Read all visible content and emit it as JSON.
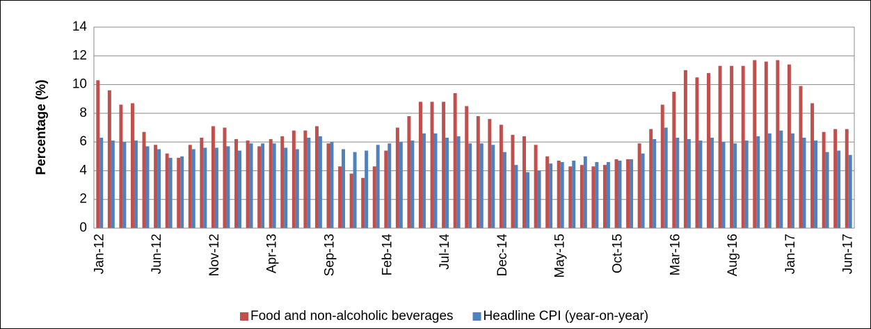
{
  "chart_data": {
    "type": "bar",
    "y_label": "Percentage (%)",
    "categories": [
      "Jan-12",
      null,
      null,
      null,
      null,
      "Jun-12",
      null,
      null,
      null,
      null,
      "Nov-12",
      null,
      null,
      null,
      null,
      "Apr-13",
      null,
      null,
      null,
      null,
      "Sep-13",
      null,
      null,
      null,
      null,
      "Feb-14",
      null,
      null,
      null,
      null,
      "Jul-14",
      null,
      null,
      null,
      null,
      "Dec-14",
      null,
      null,
      null,
      null,
      "May-15",
      null,
      null,
      null,
      null,
      "Oct-15",
      null,
      null,
      null,
      null,
      "Mar-16",
      null,
      null,
      null,
      null,
      "Aug-16",
      null,
      null,
      null,
      null,
      "Jan-17",
      null,
      null,
      null,
      null,
      "Jun-17"
    ],
    "series": [
      {
        "name": "Food and non-alcoholic beverages",
        "color": "#c0504d",
        "values": [
          10.3,
          9.6,
          8.6,
          8.7,
          6.7,
          5.8,
          5.2,
          4.9,
          5.8,
          6.3,
          7.1,
          7.0,
          6.2,
          6.1,
          5.7,
          6.2,
          6.4,
          6.8,
          6.8,
          7.1,
          5.9,
          4.3,
          3.8,
          3.5,
          4.3,
          5.4,
          7.0,
          7.8,
          8.8,
          8.8,
          8.8,
          9.4,
          8.5,
          7.8,
          7.6,
          7.2,
          6.5,
          6.4,
          5.8,
          5.0,
          4.7,
          4.3,
          4.4,
          4.3,
          4.4,
          4.8,
          4.8,
          5.9,
          6.9,
          8.6,
          9.5,
          11.0,
          10.5,
          10.8,
          11.3,
          11.3,
          11.3,
          11.7,
          11.6,
          11.7,
          11.4,
          9.9,
          8.7,
          6.7,
          6.9,
          6.9
        ]
      },
      {
        "name": "Headline CPI (year-on-year)",
        "color": "#4f81bd",
        "values": [
          6.3,
          6.1,
          6.0,
          6.1,
          5.7,
          5.5,
          4.9,
          5.0,
          5.5,
          5.6,
          5.6,
          5.7,
          5.4,
          5.9,
          5.9,
          5.9,
          5.6,
          5.5,
          6.3,
          6.4,
          6.0,
          5.5,
          5.3,
          5.4,
          5.8,
          5.9,
          6.0,
          6.1,
          6.6,
          6.6,
          6.3,
          6.4,
          5.9,
          5.9,
          5.8,
          5.3,
          4.4,
          3.9,
          4.0,
          4.5,
          4.6,
          4.7,
          5.0,
          4.6,
          4.6,
          4.7,
          4.8,
          5.2,
          6.2,
          7.0,
          6.3,
          6.2,
          6.1,
          6.3,
          6.0,
          5.9,
          6.1,
          6.4,
          6.6,
          6.8,
          6.6,
          6.3,
          6.1,
          5.3,
          5.4,
          5.1
        ]
      }
    ],
    "ylim": [
      0,
      14
    ],
    "yticks": [
      0,
      2,
      4,
      6,
      8,
      10,
      12,
      14
    ],
    "grid": true,
    "legend": "bottom"
  }
}
